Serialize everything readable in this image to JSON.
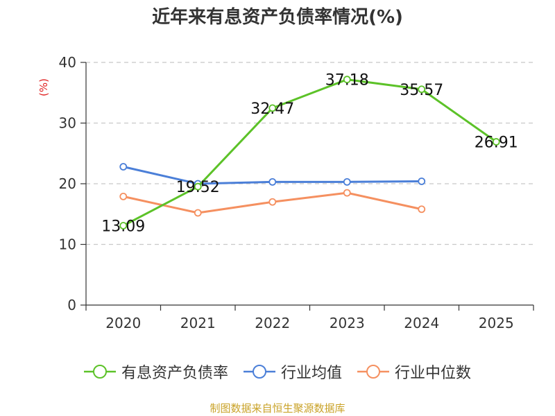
{
  "chart_data": {
    "type": "line",
    "title": "近年来有息资产负债率情况(%)",
    "ylabel": "(%)",
    "xlabel": "",
    "categories": [
      "2020",
      "2021",
      "2022",
      "2023",
      "2024",
      "2025"
    ],
    "ylim": [
      0,
      40
    ],
    "yticks": [
      0,
      10,
      20,
      30,
      40
    ],
    "grid": true,
    "legend_position": "bottom",
    "series": [
      {
        "name": "有息资产负债率",
        "color": "#5cc228",
        "values": [
          13.09,
          19.52,
          32.47,
          37.18,
          35.57,
          26.91
        ],
        "show_labels": true
      },
      {
        "name": "行业均值",
        "color": "#4b7fd8",
        "values": [
          22.8,
          20.0,
          20.3,
          20.3,
          20.4,
          null
        ],
        "show_labels": false
      },
      {
        "name": "行业中位数",
        "color": "#f59060",
        "values": [
          17.9,
          15.2,
          17.0,
          18.5,
          15.8,
          null
        ],
        "show_labels": false
      }
    ],
    "labels": [
      "13.09",
      "19.52",
      "32.47",
      "37.18",
      "35.57",
      "26.91"
    ]
  },
  "source": "制图数据来自恒生聚源数据库"
}
